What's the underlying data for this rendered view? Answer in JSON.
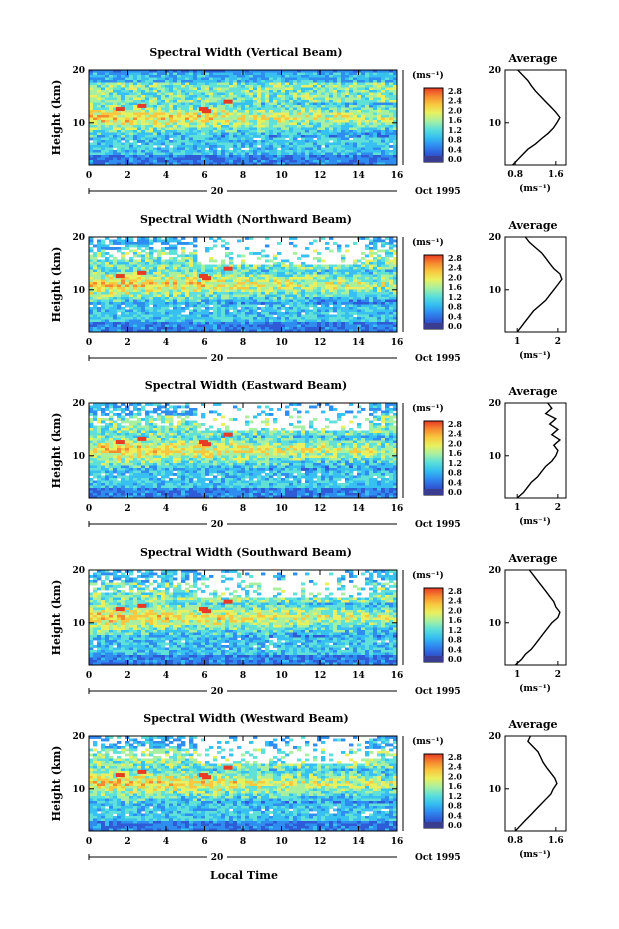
{
  "figure": {
    "xlabel_bottom": "Local Time",
    "date_label": "Oct 1995",
    "day_label": "20",
    "unit_label": "(ms⁻¹)",
    "ylabel": "Height (km)",
    "average_title": "Average",
    "average_unit": "(ms⁻¹)"
  },
  "colorscale": {
    "stops": [
      "#3a3d8f",
      "#2f5bd6",
      "#2f8df0",
      "#37c0f0",
      "#5fe0d8",
      "#a8f0a0",
      "#e8f060",
      "#f8c840",
      "#f58a30",
      "#e83a25"
    ],
    "tick_labels": [
      "2.8",
      "2.4",
      "2.0",
      "1.6",
      "1.2",
      "0.8",
      "0.4",
      "0.0"
    ]
  },
  "chart_data": [
    {
      "type": "heatmap",
      "title": "Spectral Width (Vertical Beam)",
      "xlim": [
        0,
        16
      ],
      "ylim": [
        2,
        20
      ],
      "xticks": [
        "0",
        "2",
        "4",
        "6",
        "8",
        "10",
        "12",
        "14",
        "16"
      ],
      "yticks": [
        "10",
        "20"
      ],
      "value_unit": "ms-1",
      "average_profile": {
        "xticks": [
          "0.8",
          "1.6"
        ],
        "xlim": [
          0.6,
          1.8
        ],
        "heights": [
          2,
          3,
          4,
          5,
          6,
          7,
          8,
          9,
          10,
          11,
          12,
          13,
          14,
          15,
          16,
          17,
          18,
          19,
          20
        ],
        "values": [
          0.75,
          0.85,
          0.95,
          1.05,
          1.2,
          1.32,
          1.45,
          1.55,
          1.62,
          1.68,
          1.6,
          1.5,
          1.4,
          1.3,
          1.2,
          1.12,
          1.05,
          0.95,
          0.85
        ]
      }
    },
    {
      "type": "heatmap",
      "title": "Spectral Width (Northward Beam)",
      "xlim": [
        0,
        16
      ],
      "ylim": [
        2,
        20
      ],
      "xticks": [
        "0",
        "2",
        "4",
        "6",
        "8",
        "10",
        "12",
        "14",
        "16"
      ],
      "yticks": [
        "10",
        "20"
      ],
      "value_unit": "ms-1",
      "average_profile": {
        "xticks": [
          "1",
          "2"
        ],
        "xlim": [
          0.7,
          2.2
        ],
        "heights": [
          2,
          3,
          4,
          5,
          6,
          7,
          8,
          9,
          10,
          11,
          12,
          13,
          14,
          15,
          16,
          17,
          18,
          19,
          20
        ],
        "values": [
          1.0,
          1.1,
          1.2,
          1.3,
          1.4,
          1.55,
          1.7,
          1.8,
          1.9,
          2.0,
          2.1,
          2.05,
          1.9,
          1.8,
          1.7,
          1.6,
          1.45,
          1.3,
          1.2
        ]
      }
    },
    {
      "type": "heatmap",
      "title": "Spectral Width (Eastward Beam)",
      "xlim": [
        0,
        16
      ],
      "ylim": [
        2,
        20
      ],
      "xticks": [
        "0",
        "2",
        "4",
        "6",
        "8",
        "10",
        "12",
        "14",
        "16"
      ],
      "yticks": [
        "10",
        "20"
      ],
      "value_unit": "ms-1",
      "average_profile": {
        "xticks": [
          "1",
          "2"
        ],
        "xlim": [
          0.7,
          2.2
        ],
        "heights": [
          2,
          3,
          4,
          5,
          6,
          7,
          8,
          9,
          10,
          11,
          12,
          13,
          14,
          15,
          16,
          17,
          18,
          19,
          20
        ],
        "values": [
          1.0,
          1.15,
          1.25,
          1.35,
          1.5,
          1.6,
          1.7,
          1.85,
          1.95,
          2.0,
          1.9,
          2.05,
          1.85,
          2.0,
          1.8,
          1.95,
          1.7,
          1.85,
          1.75
        ]
      }
    },
    {
      "type": "heatmap",
      "title": "Spectral Width (Southward Beam)",
      "xlim": [
        0,
        16
      ],
      "ylim": [
        2,
        20
      ],
      "xticks": [
        "0",
        "2",
        "4",
        "6",
        "8",
        "10",
        "12",
        "14",
        "16"
      ],
      "yticks": [
        "10",
        "20"
      ],
      "value_unit": "ms-1",
      "average_profile": {
        "xticks": [
          "1",
          "2"
        ],
        "xlim": [
          0.7,
          2.2
        ],
        "heights": [
          2,
          3,
          4,
          5,
          6,
          7,
          8,
          9,
          10,
          11,
          12,
          13,
          14,
          15,
          16,
          17,
          18,
          19,
          20
        ],
        "values": [
          0.95,
          1.1,
          1.2,
          1.35,
          1.45,
          1.55,
          1.65,
          1.75,
          1.85,
          2.0,
          2.05,
          1.95,
          1.9,
          1.8,
          1.7,
          1.6,
          1.5,
          1.4,
          1.3
        ]
      }
    },
    {
      "type": "heatmap",
      "title": "Spectral Width (Westward Beam)",
      "xlim": [
        0,
        16
      ],
      "ylim": [
        2,
        20
      ],
      "xticks": [
        "0",
        "2",
        "4",
        "6",
        "8",
        "10",
        "12",
        "14",
        "16"
      ],
      "yticks": [
        "10",
        "20"
      ],
      "value_unit": "ms-1",
      "average_profile": {
        "xticks": [
          "0.8",
          "1.6"
        ],
        "xlim": [
          0.6,
          1.8
        ],
        "heights": [
          2,
          3,
          4,
          5,
          6,
          7,
          8,
          9,
          10,
          11,
          12,
          13,
          14,
          15,
          16,
          17,
          18,
          19,
          20
        ],
        "values": [
          0.8,
          0.9,
          1.0,
          1.1,
          1.2,
          1.3,
          1.4,
          1.5,
          1.55,
          1.62,
          1.58,
          1.5,
          1.42,
          1.35,
          1.3,
          1.25,
          1.15,
          1.05,
          1.1
        ]
      }
    }
  ]
}
